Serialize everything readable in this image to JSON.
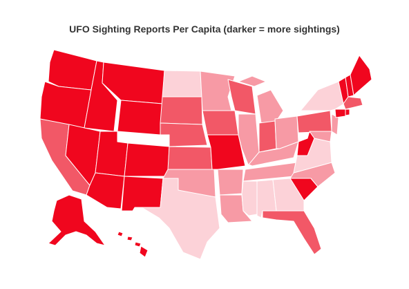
{
  "title": "UFO Sighting Reports Per Capita (darker = more sightings)"
}
